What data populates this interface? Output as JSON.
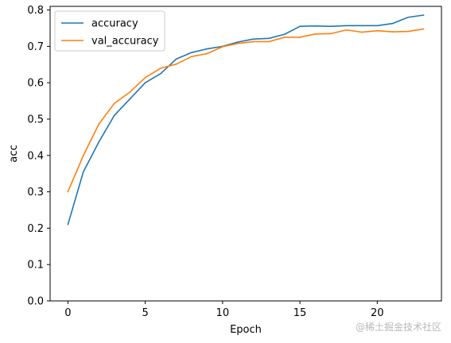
{
  "chart_data": {
    "type": "line",
    "xlabel": "Epoch",
    "ylabel": "acc",
    "xlim": [
      -1.15,
      24.15
    ],
    "ylim": [
      0,
      0.81
    ],
    "xticks": [
      0,
      5,
      10,
      15,
      20
    ],
    "yticks": [
      0.0,
      0.1,
      0.2,
      0.3,
      0.4,
      0.5,
      0.6,
      0.7,
      0.8
    ],
    "ytick_labels": [
      "0.0",
      "0.1",
      "0.2",
      "0.3",
      "0.4",
      "0.5",
      "0.6",
      "0.7",
      "0.8"
    ],
    "xtick_labels": [
      "0",
      "5",
      "10",
      "15",
      "20"
    ],
    "grid": false,
    "legend_position": "top-left",
    "x": [
      0,
      1,
      2,
      3,
      4,
      5,
      6,
      7,
      8,
      9,
      10,
      11,
      12,
      13,
      14,
      15,
      16,
      17,
      18,
      19,
      20,
      21,
      22,
      23
    ],
    "series": [
      {
        "name": "accuracy",
        "color": "#1f77b4",
        "values": [
          0.21,
          0.355,
          0.437,
          0.51,
          0.555,
          0.6,
          0.625,
          0.665,
          0.683,
          0.693,
          0.7,
          0.712,
          0.72,
          0.722,
          0.733,
          0.755,
          0.756,
          0.755,
          0.757,
          0.757,
          0.757,
          0.763,
          0.78,
          0.786
        ]
      },
      {
        "name": "val_accuracy",
        "color": "#ff7f0e",
        "values": [
          0.3,
          0.4,
          0.486,
          0.543,
          0.574,
          0.614,
          0.64,
          0.651,
          0.672,
          0.68,
          0.699,
          0.708,
          0.713,
          0.713,
          0.725,
          0.725,
          0.734,
          0.735,
          0.745,
          0.739,
          0.743,
          0.74,
          0.741,
          0.748
        ]
      }
    ]
  },
  "watermark": "@稀土掘金技术社区"
}
